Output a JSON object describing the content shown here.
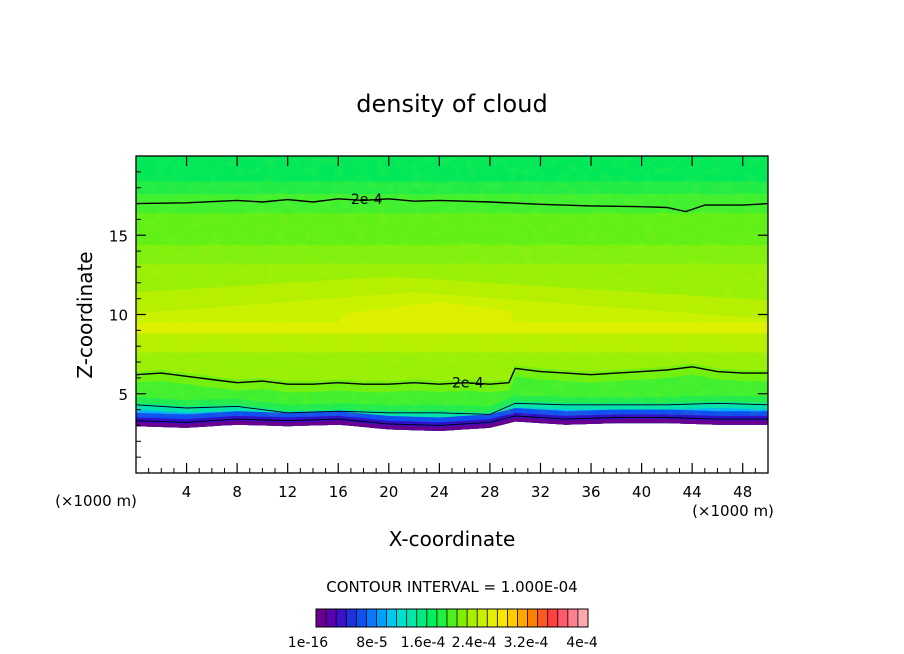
{
  "chart_data": {
    "type": "heatmap",
    "title": "density of cloud",
    "xlabel": "X-coordinate",
    "ylabel": "Z-coordinate",
    "x_unit": "(×1000 m)",
    "y_unit": "(×1000 m)",
    "xlim": [
      0,
      50
    ],
    "ylim": [
      0,
      20
    ],
    "x_ticks": [
      4,
      8,
      12,
      16,
      20,
      24,
      28,
      32,
      36,
      40,
      44,
      48
    ],
    "y_ticks": [
      5,
      10,
      15
    ],
    "contour_interval_text": "CONTOUR INTERVAL = 1.000E-04",
    "contour_labels": [
      {
        "text": "2e-4",
        "x": 17.0,
        "z": 17.3
      },
      {
        "text": "2e-4",
        "x": 25.0,
        "z": 5.7
      }
    ],
    "contours": [
      {
        "level": "2e-4",
        "x": [
          0,
          4,
          8,
          10,
          12,
          14,
          16,
          18,
          20,
          22,
          24,
          28,
          32,
          36,
          40,
          42,
          43.5,
          45,
          48,
          50
        ],
        "z": [
          17.0,
          17.05,
          17.2,
          17.1,
          17.25,
          17.1,
          17.3,
          17.2,
          17.3,
          17.15,
          17.2,
          17.1,
          16.95,
          16.85,
          16.8,
          16.75,
          16.5,
          16.9,
          16.9,
          17.0
        ]
      },
      {
        "level": "2e-4",
        "x": [
          0,
          2,
          4,
          6,
          8,
          10,
          12,
          14,
          16,
          18,
          20,
          22,
          24,
          26,
          28,
          29.5,
          30,
          32,
          34,
          36,
          38,
          40,
          42,
          44,
          46,
          48,
          50
        ],
        "z": [
          6.2,
          6.3,
          6.1,
          5.9,
          5.7,
          5.8,
          5.6,
          5.6,
          5.7,
          5.6,
          5.6,
          5.7,
          5.6,
          5.7,
          5.6,
          5.7,
          6.6,
          6.4,
          6.3,
          6.2,
          6.3,
          6.4,
          6.5,
          6.7,
          6.4,
          6.3,
          6.3
        ]
      },
      {
        "level": "1e-4",
        "x": [
          0,
          4,
          8,
          12,
          16,
          20,
          24,
          28,
          30,
          34,
          38,
          42,
          46,
          50
        ],
        "z": [
          4.3,
          4.1,
          4.2,
          3.8,
          3.9,
          3.8,
          3.8,
          3.7,
          4.4,
          4.3,
          4.3,
          4.3,
          4.4,
          4.3
        ]
      },
      {
        "level": "0",
        "x": [
          0,
          4,
          8,
          12,
          16,
          20,
          24,
          28,
          30,
          34,
          38,
          42,
          46,
          50
        ],
        "z": [
          3.3,
          3.2,
          3.4,
          3.3,
          3.4,
          3.1,
          3.0,
          3.2,
          3.6,
          3.4,
          3.5,
          3.5,
          3.4,
          3.4
        ]
      }
    ],
    "colorbar": {
      "labels": [
        "1e-16",
        "8e-5",
        "1.6e-4",
        "2.4e-4",
        "3.2e-4",
        "4e-4"
      ],
      "colors": [
        "#6a0090",
        "#5a00b0",
        "#3a10c8",
        "#2030dc",
        "#1050f0",
        "#0a78f8",
        "#00a0ff",
        "#00c8f0",
        "#00e0d0",
        "#00e8a8",
        "#00ec80",
        "#00f060",
        "#20f040",
        "#50f020",
        "#80f000",
        "#a8f000",
        "#c8f000",
        "#e4f000",
        "#f8e800",
        "#ffcc00",
        "#ffa800",
        "#ff8000",
        "#ff5820",
        "#ff4040",
        "#ff5a6a",
        "#ff8090",
        "#ffa8b0"
      ]
    }
  }
}
